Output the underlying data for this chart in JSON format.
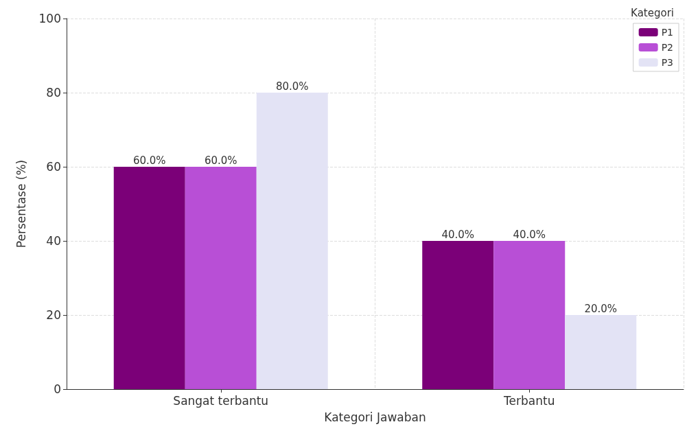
{
  "chart_data": {
    "type": "bar",
    "xlabel": "Kategori Jawaban",
    "ylabel": "Persentase (%)",
    "legend_title": "Kategori",
    "categories": [
      "Sangat terbantu",
      "Terbantu"
    ],
    "series": [
      {
        "name": "P1",
        "color": "#7b0078",
        "values": [
          60,
          40
        ],
        "value_labels": [
          "60.0%",
          "40.0%"
        ]
      },
      {
        "name": "P2",
        "color": "#b84fd6",
        "values": [
          60,
          40
        ],
        "value_labels": [
          "60.0%",
          "40.0%"
        ]
      },
      {
        "name": "P3",
        "color": "#e3e3f5",
        "values": [
          80,
          20
        ],
        "value_labels": [
          "80.0%",
          "20.0%"
        ]
      }
    ],
    "ylim": [
      0,
      100
    ],
    "yticks": [
      0,
      20,
      40,
      60,
      80,
      100
    ],
    "grid": true,
    "legend": "top right"
  }
}
